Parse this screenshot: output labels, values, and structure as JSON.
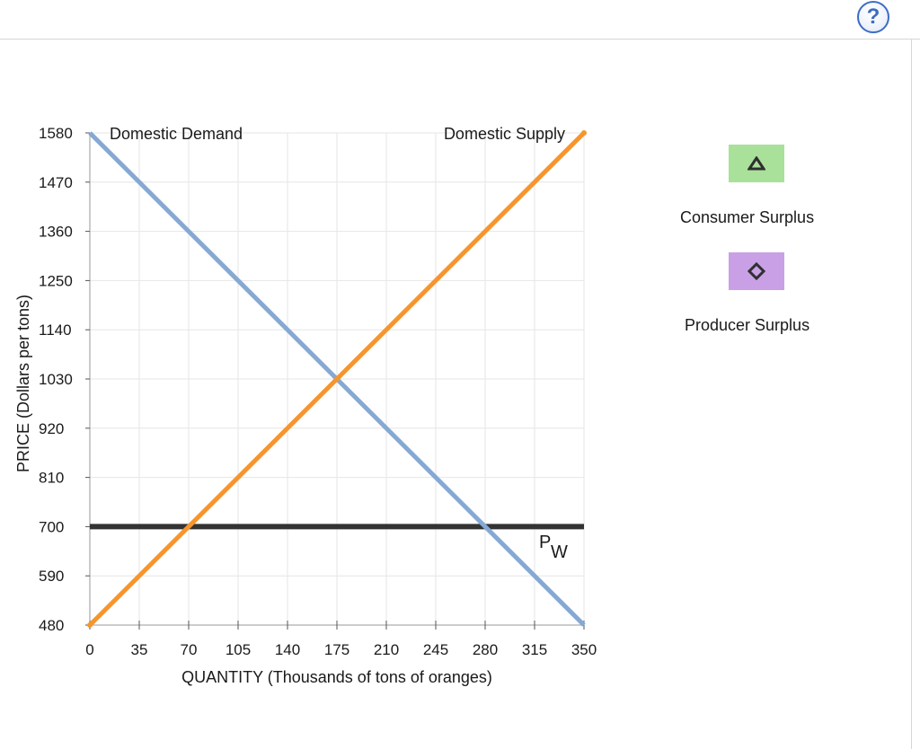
{
  "help": {
    "label": "?"
  },
  "legend": {
    "items": [
      {
        "label": "Consumer Surplus",
        "color": "#a9e09a",
        "icon": "triangle-icon",
        "border": "#2f2f2f"
      },
      {
        "label": "Producer Surplus",
        "color": "#c9a0e6",
        "icon": "diamond-icon",
        "border": "#2f2f2f"
      }
    ]
  },
  "chart_data": {
    "type": "line",
    "xlabel": "QUANTITY (Thousands of tons of oranges)",
    "ylabel": "PRICE (Dollars per tons)",
    "xlim": [
      0,
      350
    ],
    "ylim": [
      480,
      1580
    ],
    "xticks": [
      0,
      35,
      70,
      105,
      140,
      175,
      210,
      245,
      280,
      315,
      350
    ],
    "yticks": [
      480,
      590,
      700,
      810,
      920,
      1030,
      1140,
      1250,
      1360,
      1470,
      1580
    ],
    "grid": true,
    "series": [
      {
        "name": "Domestic Demand",
        "color": "#86a9d3",
        "points": [
          [
            0,
            1580
          ],
          [
            350,
            480
          ]
        ]
      },
      {
        "name": "Domestic Supply",
        "color": "#f7952c",
        "points": [
          [
            0,
            480
          ],
          [
            350,
            1580
          ]
        ]
      },
      {
        "name": "PW",
        "color": "#333333",
        "points": [
          [
            0,
            700
          ],
          [
            350,
            700
          ]
        ]
      }
    ],
    "annotations": [
      {
        "text": "Domestic Demand"
      },
      {
        "text": "Domestic Supply"
      },
      {
        "text": "P",
        "sub": "W"
      }
    ]
  }
}
